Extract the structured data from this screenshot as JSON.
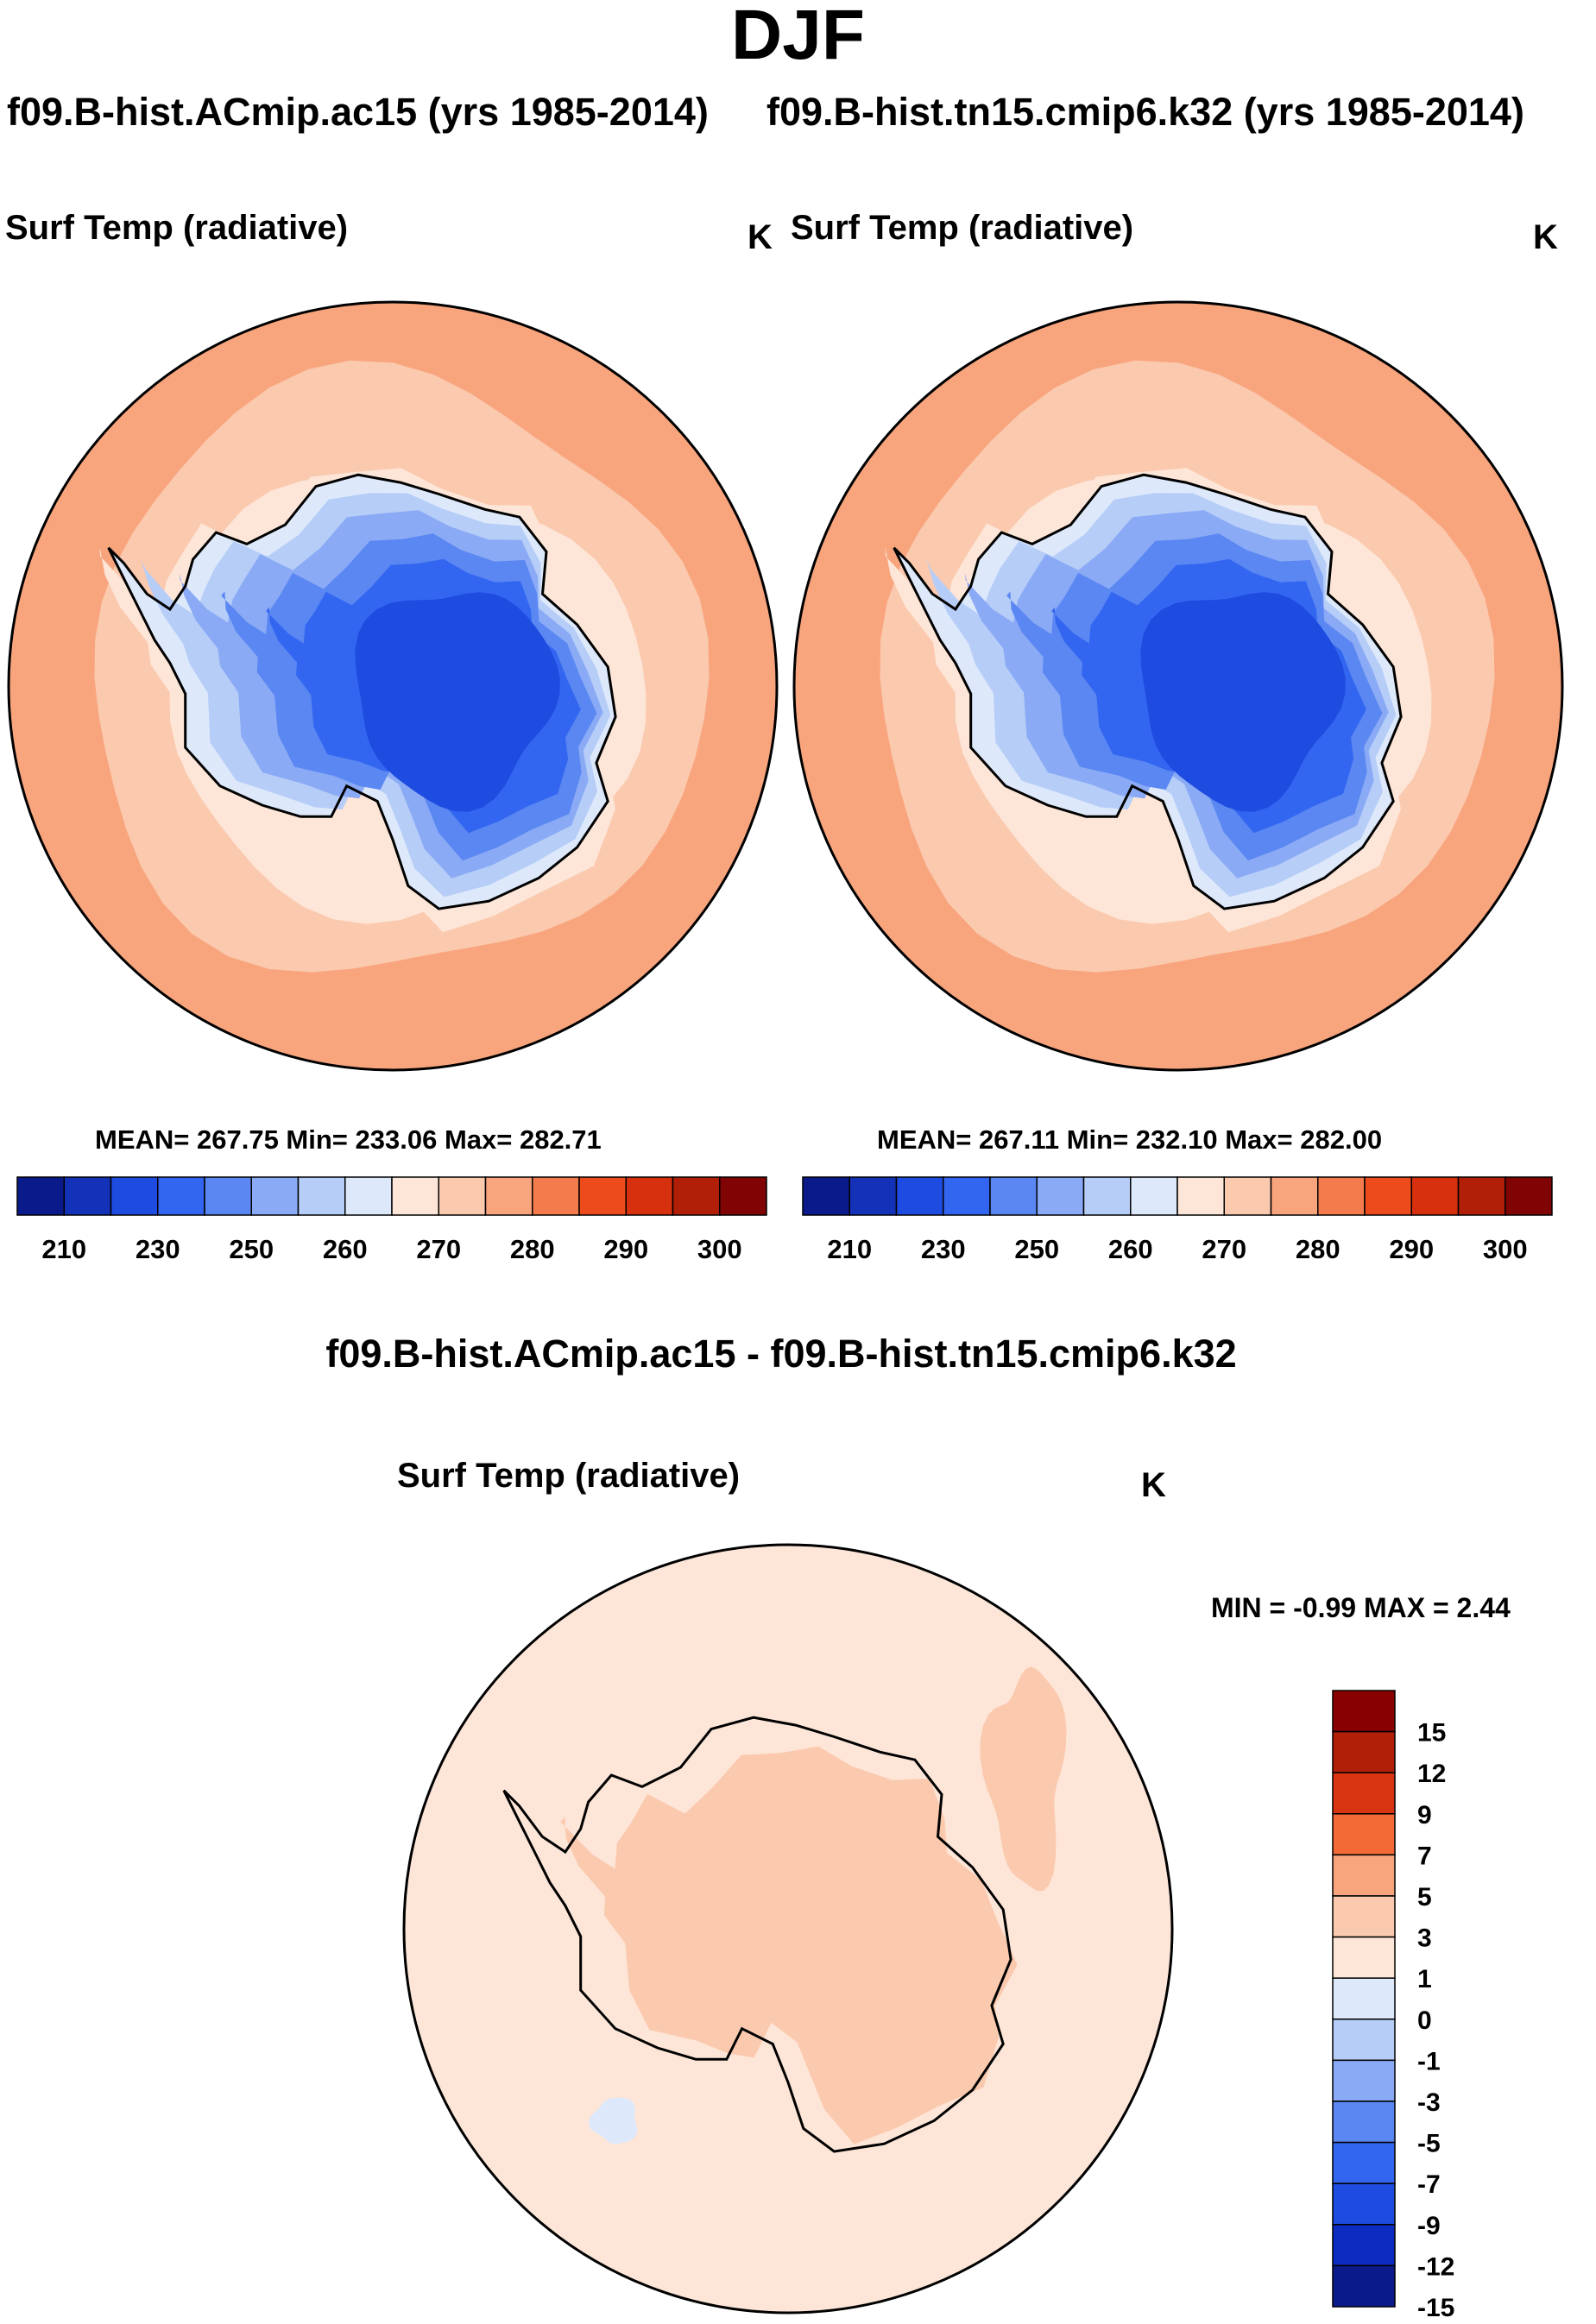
{
  "title": "DJF",
  "case_a": "f09.B-hist.ACmip.ac15 (yrs 1985-2014)",
  "case_b": "f09.B-hist.tn15.cmip6.k32 (yrs 1985-2014)",
  "diff_title": "f09.B-hist.ACmip.ac15 - f09.B-hist.tn15.cmip6.k32",
  "panels": {
    "a": {
      "variable": "Surf Temp (radiative)",
      "units": "K",
      "stats": "MEAN= 267.75  Min= 233.06  Max= 282.71"
    },
    "b": {
      "variable": "Surf Temp (radiative)",
      "units": "K",
      "stats": "MEAN= 267.11  Min= 232.10  Max= 282.00"
    },
    "diff": {
      "variable": "Surf Temp (radiative)",
      "units": "K",
      "minmax": "MIN =  -0.99 MAX =   2.44"
    }
  },
  "colorbar_abs": {
    "colors": [
      "#0a1a8a",
      "#1432b8",
      "#1e4be0",
      "#3366f0",
      "#5a87f2",
      "#8aaaf5",
      "#b6cdf8",
      "#dde9fb",
      "#fde6d8",
      "#fbc9ae",
      "#f8a57e",
      "#f47c4c",
      "#ee4b1d",
      "#d6300f",
      "#b21f08",
      "#800404"
    ],
    "labels": [
      "210",
      "230",
      "250",
      "260",
      "270",
      "280",
      "290",
      "300"
    ]
  },
  "colorbar_diff": {
    "colors": [
      "#880000",
      "#b21f08",
      "#d93512",
      "#f36a36",
      "#f8a57e",
      "#fbc9ae",
      "#fde6d8",
      "#dde9fb",
      "#b6cdf8",
      "#8aaaf5",
      "#5a87f2",
      "#3366f0",
      "#1e4be0",
      "#0c2bc0",
      "#0a1a8a"
    ],
    "labels": [
      "15",
      "12",
      "9",
      "7",
      "5",
      "3",
      "1",
      "0",
      "-1",
      "-3",
      "-5",
      "-7",
      "-9",
      "-12",
      "-15"
    ]
  },
  "map_colors": {
    "outer": "#f8a57e",
    "mid": "#fbc9ae",
    "inner": "#fde6d8",
    "coast": "#dde9fb",
    "ice1": "#b6cdf8",
    "ice2": "#8aaaf5",
    "ice3": "#5a87f2",
    "ice4": "#3366f0",
    "ice5": "#1e4be0",
    "diff_bg": "#fde6d8",
    "diff_land": "#fbc9ae",
    "diff_neg": "#dde9fb"
  }
}
